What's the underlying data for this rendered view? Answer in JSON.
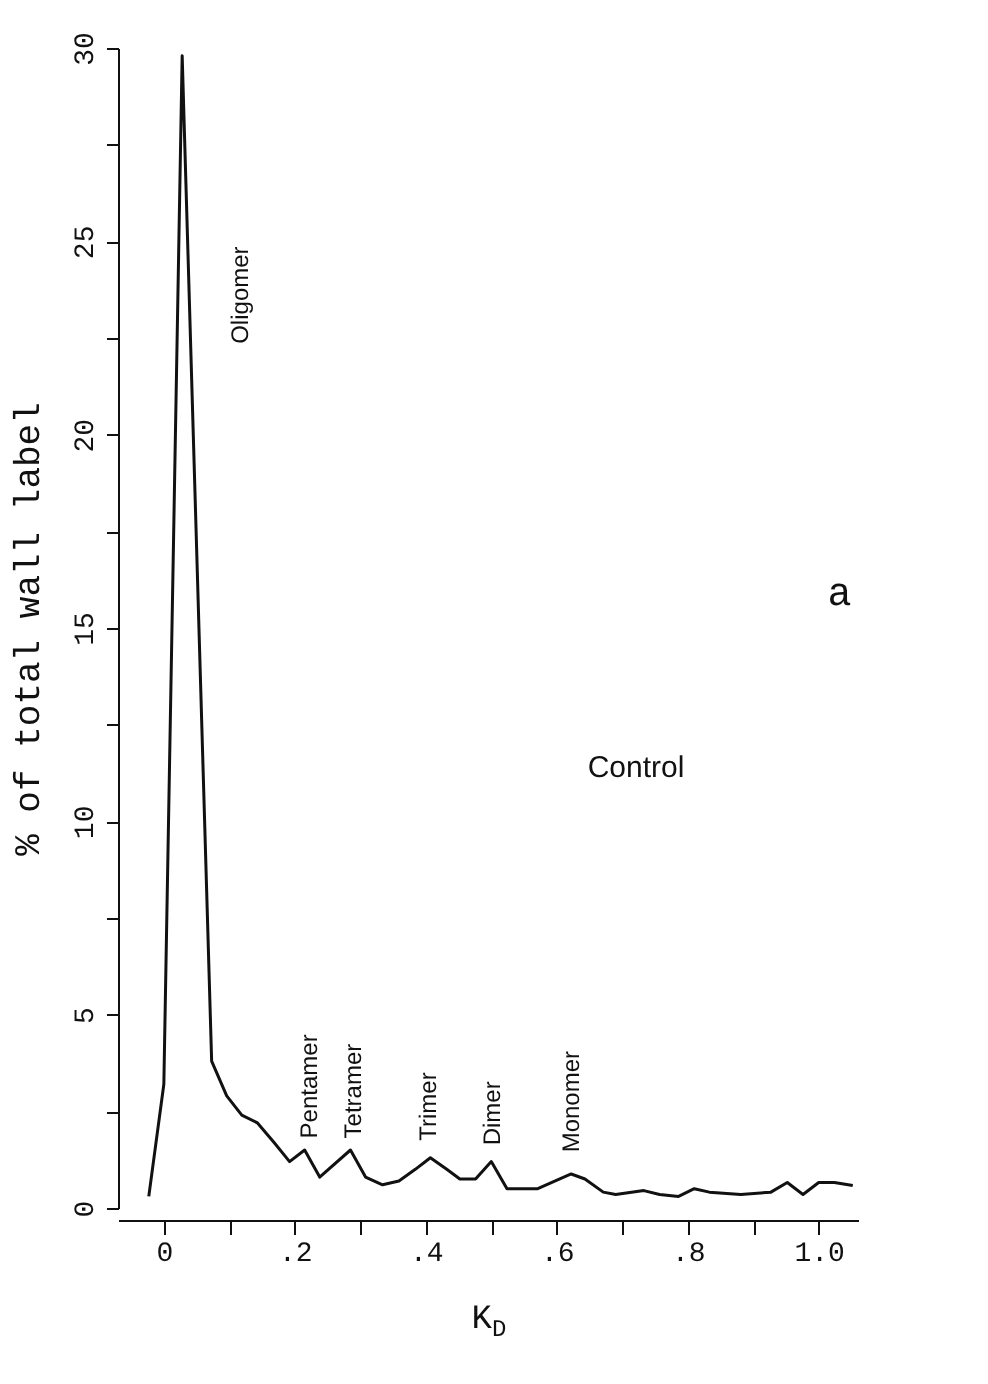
{
  "chart_data": {
    "type": "line",
    "xlabel": "K$_{D}$",
    "ylabel": "% of total wall label",
    "x": [
      -0.023,
      0.0,
      0.028,
      0.073,
      0.096,
      0.119,
      0.143,
      0.168,
      0.192,
      0.215,
      0.238,
      0.285,
      0.308,
      0.334,
      0.359,
      0.384,
      0.407,
      0.432,
      0.452,
      0.476,
      0.5,
      0.524,
      0.571,
      0.622,
      0.643,
      0.671,
      0.69,
      0.733,
      0.757,
      0.786,
      0.81,
      0.833,
      0.881,
      0.927,
      0.952,
      0.976,
      1.0,
      1.024,
      1.052
    ],
    "series": [
      {
        "color": "#111111",
        "values": [
          0.3,
          3.2,
          29.8,
          3.8,
          2.9,
          2.4,
          2.2,
          1.7,
          1.2,
          1.5,
          0.8,
          1.5,
          0.8,
          0.6,
          0.7,
          1.0,
          1.3,
          1.0,
          0.75,
          0.75,
          1.2,
          0.5,
          0.5,
          0.88,
          0.75,
          0.41,
          0.35,
          0.45,
          0.35,
          0.3,
          0.5,
          0.41,
          0.35,
          0.41,
          0.66,
          0.35,
          0.66,
          0.66,
          0.58
        ]
      }
    ],
    "xlim": [
      -0.07,
      1.06
    ],
    "ylim": [
      0,
      30
    ],
    "xticks": [
      0,
      {
        "value": 0.1,
        "label": null
      },
      {
        "value": 0.2,
        "label": ".2"
      },
      {
        "value": 0.3,
        "label": null
      },
      {
        "value": 0.4,
        "label": ".4"
      },
      {
        "value": 0.5,
        "label": null
      },
      {
        "value": 0.6,
        "label": ".6"
      },
      {
        "value": 0.7,
        "label": null
      },
      {
        "value": 0.8,
        "label": ".8"
      },
      {
        "value": 0.9,
        "label": null
      },
      {
        "value": 1.0,
        "label": "1.0"
      }
    ],
    "yticks": [
      0,
      {
        "value": 2.5,
        "label": null
      },
      5,
      {
        "value": 7.5,
        "label": null
      },
      10,
      {
        "value": 12.5,
        "label": null
      },
      15,
      {
        "value": 17.5,
        "label": null
      },
      20,
      {
        "value": 22.5,
        "label": null
      },
      25,
      {
        "value": 27.5,
        "label": null
      },
      30
    ],
    "grid": false,
    "marker": "none",
    "line_style": "solid",
    "annotations": [
      "Oligomer",
      "Pentamer",
      "Tetramer",
      "Trimer",
      "Dimer",
      "Monomer",
      "a",
      "Control"
    ]
  }
}
